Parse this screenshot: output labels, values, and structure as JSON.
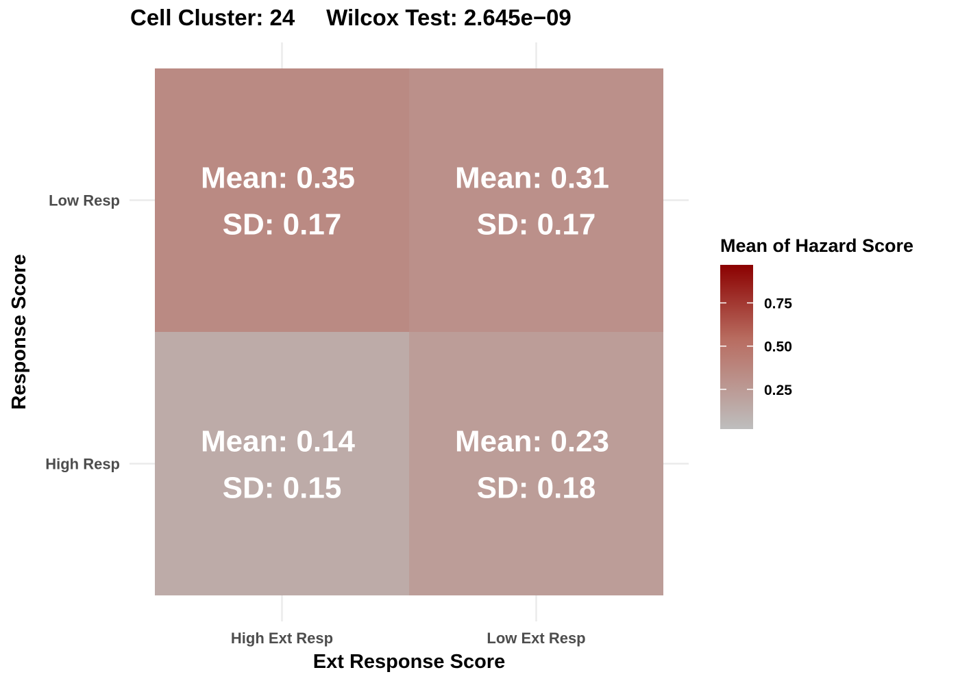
{
  "chart_data": {
    "type": "heatmap",
    "title": "Cell Cluster: 24     Wilcox Test: 2.645e−09",
    "xlabel": "Ext Response Score",
    "ylabel": "Response Score",
    "x_categories": [
      "High Ext Resp",
      "Low Ext Resp"
    ],
    "y_categories": [
      "High Resp",
      "Low Resp"
    ],
    "cells": [
      {
        "x": "High Ext Resp",
        "y": "Low Resp",
        "mean": 0.35,
        "sd": 0.17,
        "mean_label": "Mean: 0.35",
        "sd_label": "SD: 0.17"
      },
      {
        "x": "Low Ext Resp",
        "y": "Low Resp",
        "mean": 0.31,
        "sd": 0.17,
        "mean_label": "Mean: 0.31",
        "sd_label": "SD: 0.17"
      },
      {
        "x": "High Ext Resp",
        "y": "High Resp",
        "mean": 0.14,
        "sd": 0.15,
        "mean_label": "Mean: 0.14",
        "sd_label": "SD: 0.15"
      },
      {
        "x": "Low Ext Resp",
        "y": "High Resp",
        "mean": 0.23,
        "sd": 0.18,
        "mean_label": "Mean: 0.23",
        "sd_label": "SD: 0.18"
      }
    ],
    "legend": {
      "title": "Mean of Hazard Score",
      "position": "right",
      "colors": {
        "low": "#bebebe",
        "high": "#8b0000"
      },
      "range": [
        0.02,
        0.97
      ],
      "ticks": [
        0.25,
        0.5,
        0.75
      ],
      "tick_labels": [
        "0.25",
        "0.50",
        "0.75"
      ]
    },
    "grid": true
  }
}
